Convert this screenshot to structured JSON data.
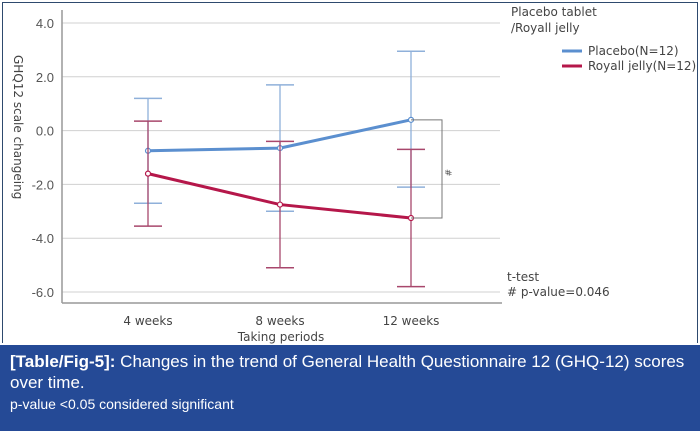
{
  "chart_data": {
    "type": "line",
    "title": "",
    "xlabel": "Taking periods",
    "ylabel": "GHQ12 scale changeing",
    "categories": [
      "4 weeks",
      "8 weeks",
      "12 weeks"
    ],
    "ylim": [
      -6.0,
      4.0
    ],
    "yticks": [
      4.0,
      2.0,
      0.0,
      -2.0,
      -4.0,
      -6.0
    ],
    "ytick_labels": [
      "4.0",
      "2.0",
      "0.0",
      "-2.0",
      "-4.0",
      "-6.0"
    ],
    "grid": true,
    "legend_title": [
      "Placebo tablet",
      "/Royall jelly"
    ],
    "legend_position": "top-right",
    "series": [
      {
        "name": "Placebo(N=12)",
        "color": "#5b8fcf",
        "values": [
          -0.75,
          -0.65,
          0.4
        ],
        "err_upper": [
          1.2,
          1.7,
          2.95
        ],
        "err_lower": [
          -2.7,
          -3.0,
          -2.1
        ]
      },
      {
        "name": "Royall jelly(N=12)",
        "color": "#b5174a",
        "values": [
          -1.6,
          -2.75,
          -3.25
        ],
        "err_upper": [
          0.35,
          -0.4,
          -0.7
        ],
        "err_lower": [
          -3.55,
          -5.1,
          -5.8
        ]
      }
    ],
    "annotations": {
      "significance_marker": "#",
      "test_label": "t-test",
      "p_value_label": "# p-value=0.046"
    }
  },
  "caption": {
    "lead": "[Table/Fig-5]:",
    "text": " Changes in the trend of General Health Questionnaire 12 (GHQ-12) scores over time.",
    "note": "p-value <0.05 considered significant"
  }
}
